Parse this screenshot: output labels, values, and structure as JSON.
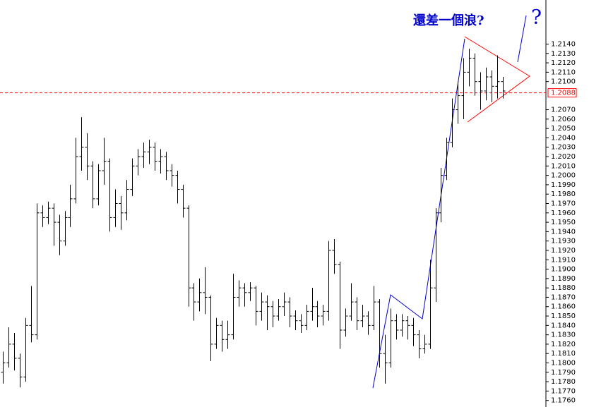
{
  "chart_data": {
    "type": "ohlc",
    "annotation": "還差一個浪?",
    "question_mark": "?",
    "ylim": [
      1.1753,
      1.2187
    ],
    "current_price": {
      "value": 1.2088,
      "label": "1.2088"
    },
    "yticks": [
      {
        "value": 1.176,
        "label": "1.1760"
      },
      {
        "value": 1.177,
        "label": "1.1770"
      },
      {
        "value": 1.178,
        "label": "1.1780"
      },
      {
        "value": 1.179,
        "label": "1.1790"
      },
      {
        "value": 1.18,
        "label": "1.1800"
      },
      {
        "value": 1.181,
        "label": "1.1810"
      },
      {
        "value": 1.182,
        "label": "1.1820"
      },
      {
        "value": 1.183,
        "label": "1.1830"
      },
      {
        "value": 1.184,
        "label": "1.1840"
      },
      {
        "value": 1.185,
        "label": "1.1850"
      },
      {
        "value": 1.186,
        "label": "1.1860"
      },
      {
        "value": 1.187,
        "label": "1.1870"
      },
      {
        "value": 1.188,
        "label": "1.1880"
      },
      {
        "value": 1.189,
        "label": "1.1890"
      },
      {
        "value": 1.19,
        "label": "1.1900"
      },
      {
        "value": 1.191,
        "label": "1.1910"
      },
      {
        "value": 1.192,
        "label": "1.1920"
      },
      {
        "value": 1.193,
        "label": "1.1930"
      },
      {
        "value": 1.194,
        "label": "1.1940"
      },
      {
        "value": 1.195,
        "label": "1.1950"
      },
      {
        "value": 1.196,
        "label": "1.1960"
      },
      {
        "value": 1.197,
        "label": "1.1970"
      },
      {
        "value": 1.198,
        "label": "1.1980"
      },
      {
        "value": 1.199,
        "label": "1.1990"
      },
      {
        "value": 1.2,
        "label": "1.2000"
      },
      {
        "value": 1.201,
        "label": "1.2010"
      },
      {
        "value": 1.202,
        "label": "1.2020"
      },
      {
        "value": 1.203,
        "label": "1.2030"
      },
      {
        "value": 1.204,
        "label": "1.2040"
      },
      {
        "value": 1.205,
        "label": "1.2050"
      },
      {
        "value": 1.206,
        "label": "1.2060"
      },
      {
        "value": 1.207,
        "label": "1.2070"
      },
      {
        "value": 1.21,
        "label": "1.2100"
      },
      {
        "value": 1.211,
        "label": "1.2110"
      },
      {
        "value": 1.212,
        "label": "1.2120"
      },
      {
        "value": 1.213,
        "label": "1.2130"
      },
      {
        "value": 1.214,
        "label": "1.2140"
      }
    ],
    "color": "#000000",
    "open": [
      1.179,
      1.18,
      1.182,
      1.1805,
      1.1785,
      1.184,
      1.183,
      1.196,
      1.1955,
      1.1965,
      1.195,
      1.193,
      1.1955,
      1.1975,
      1.202,
      1.203,
      1.201,
      1.1975,
      1.2005,
      1.2015,
      1.1955,
      1.197,
      1.196,
      1.1985,
      1.201,
      1.202,
      1.2025,
      1.203,
      1.2015,
      1.202,
      1.2005,
      1.2,
      1.1985,
      1.1965,
      1.188,
      1.1865,
      1.1875,
      1.187,
      1.182,
      1.184,
      1.1825,
      1.183,
      1.187,
      1.188,
      1.1875,
      1.188,
      1.1855,
      1.1865,
      1.186,
      1.185,
      1.186,
      1.1865,
      1.185,
      1.1845,
      1.184,
      1.1855,
      1.186,
      1.185,
      1.1855,
      1.192,
      1.1905,
      1.1835,
      1.185,
      1.1865,
      1.1845,
      1.185,
      1.184,
      1.1865,
      1.181,
      1.18,
      1.1845,
      1.1835,
      1.1845,
      1.184,
      1.183,
      1.1815,
      1.182,
      1.188,
      1.196,
      1.2,
      1.2035,
      1.207,
      1.2085,
      1.211,
      1.2125,
      1.21,
      1.209,
      1.2105,
      1.2095,
      1.21
    ],
    "high": [
      1.1812,
      1.1838,
      1.1832,
      1.181,
      1.1848,
      1.1882,
      1.197,
      1.1968,
      1.1972,
      1.197,
      1.1958,
      1.1962,
      1.199,
      1.204,
      1.2062,
      1.2045,
      1.2015,
      1.2012,
      1.204,
      1.2018,
      1.1985,
      1.1978,
      1.1995,
      1.2018,
      1.2028,
      1.2035,
      1.2038,
      1.2035,
      1.2028,
      1.2025,
      1.2012,
      1.2005,
      1.199,
      1.1968,
      1.1885,
      1.189,
      1.1902,
      1.1872,
      1.1848,
      1.1845,
      1.1845,
      1.1895,
      1.1888,
      1.1885,
      1.1886,
      1.1882,
      1.1875,
      1.1872,
      1.1866,
      1.1868,
      1.1875,
      1.187,
      1.1856,
      1.1852,
      1.1862,
      1.188,
      1.1866,
      1.1862,
      1.193,
      1.1932,
      1.1908,
      1.1858,
      1.1885,
      1.187,
      1.1862,
      1.1855,
      1.1882,
      1.1868,
      1.183,
      1.1858,
      1.1852,
      1.1852,
      1.185,
      1.1848,
      1.1835,
      1.183,
      1.191,
      1.1965,
      1.2008,
      1.204,
      1.2082,
      1.21,
      1.2125,
      1.2135,
      1.213,
      1.211,
      1.2115,
      1.2112,
      1.2128,
      1.2105
    ],
    "low": [
      1.1778,
      1.1795,
      1.1792,
      1.1774,
      1.178,
      1.1822,
      1.1825,
      1.1945,
      1.1948,
      1.1925,
      1.1915,
      1.1925,
      1.1945,
      1.197,
      1.2005,
      1.1995,
      1.1965,
      1.1968,
      1.199,
      1.194,
      1.1945,
      1.1942,
      1.1952,
      1.1978,
      1.2,
      1.2008,
      1.2012,
      1.2005,
      1.2002,
      1.1995,
      1.1988,
      1.197,
      1.1955,
      1.186,
      1.1845,
      1.1855,
      1.1852,
      1.1802,
      1.1815,
      1.1812,
      1.1815,
      1.1825,
      1.186,
      1.186,
      1.1866,
      1.184,
      1.1845,
      1.1835,
      1.1838,
      1.1845,
      1.185,
      1.1838,
      1.1835,
      1.1832,
      1.1835,
      1.1845,
      1.1838,
      1.184,
      1.1845,
      1.1895,
      1.1815,
      1.1828,
      1.1845,
      1.1835,
      1.1838,
      1.183,
      1.1835,
      1.1795,
      1.1778,
      1.1795,
      1.1825,
      1.1828,
      1.1825,
      1.1818,
      1.1805,
      1.181,
      1.1815,
      1.1865,
      1.195,
      1.1995,
      1.203,
      1.2055,
      1.206,
      1.2095,
      1.2085,
      1.207,
      1.208,
      1.2078,
      1.2082,
      1.2082
    ],
    "close": [
      1.18,
      1.182,
      1.1805,
      1.1785,
      1.184,
      1.183,
      1.196,
      1.1955,
      1.1965,
      1.195,
      1.193,
      1.1955,
      1.1975,
      1.202,
      1.203,
      1.201,
      1.1975,
      1.2005,
      1.2015,
      1.1955,
      1.197,
      1.196,
      1.1985,
      1.201,
      1.202,
      1.2025,
      1.203,
      1.2015,
      1.202,
      1.2005,
      1.2,
      1.1985,
      1.1965,
      1.188,
      1.1865,
      1.1875,
      1.187,
      1.182,
      1.184,
      1.1825,
      1.183,
      1.187,
      1.188,
      1.1875,
      1.188,
      1.1855,
      1.1865,
      1.186,
      1.185,
      1.186,
      1.1865,
      1.185,
      1.1845,
      1.184,
      1.1855,
      1.186,
      1.185,
      1.1855,
      1.192,
      1.1905,
      1.1835,
      1.185,
      1.1865,
      1.1845,
      1.185,
      1.184,
      1.1865,
      1.181,
      1.18,
      1.1845,
      1.1835,
      1.1845,
      1.184,
      1.183,
      1.1815,
      1.182,
      1.188,
      1.196,
      1.2,
      1.2035,
      1.207,
      1.2085,
      1.211,
      1.2125,
      1.21,
      1.209,
      1.2105,
      1.2095,
      1.21,
      1.209
    ]
  }
}
